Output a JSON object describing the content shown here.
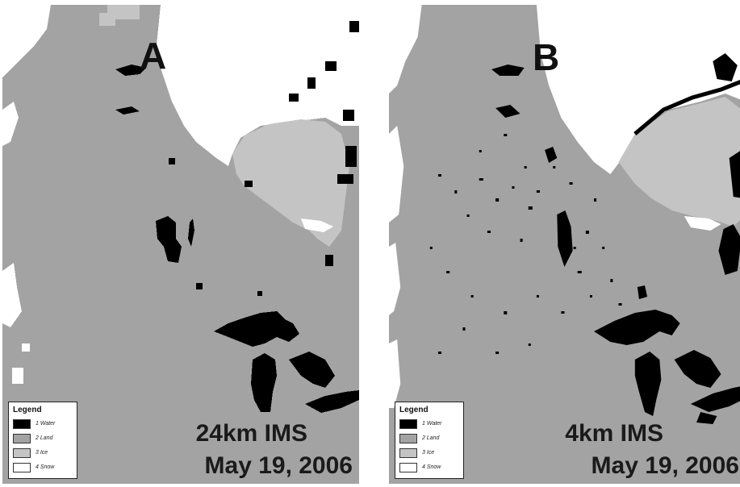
{
  "panels": [
    {
      "letter": "A",
      "caption_line1": "24km IMS",
      "caption_line2": "May 19, 2006"
    },
    {
      "letter": "B",
      "caption_line1": "4km IMS",
      "caption_line2": "May 19, 2006"
    }
  ],
  "legend": {
    "title": "Legend",
    "items": [
      {
        "label": "1  Water",
        "color": "#000000"
      },
      {
        "label": "2  Land",
        "color": "#a3a3a3"
      },
      {
        "label": "3  Ice",
        "color": "#c4c4c4"
      },
      {
        "label": "4  Snow",
        "color": "#ffffff"
      }
    ]
  }
}
